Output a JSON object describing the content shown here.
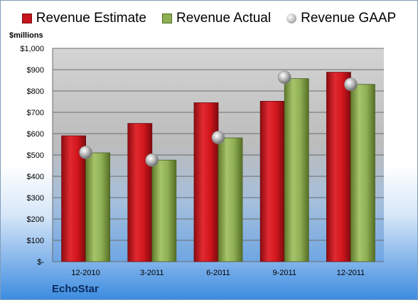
{
  "legend": {
    "estimate": "Revenue Estimate",
    "actual": "Revenue Actual",
    "gaap": "Revenue GAAP"
  },
  "unit_label": "$millions",
  "brand_label": "EchoStar",
  "colors": {
    "estimate": "#c8141c",
    "actual": "#8fb052",
    "gaap": "#b0b0b0"
  },
  "chart_data": {
    "type": "bar",
    "categories": [
      "12-2010",
      "3-2011",
      "6-2011",
      "9-2011",
      "12-2011"
    ],
    "series": [
      {
        "name": "Revenue Estimate",
        "values": [
          590,
          648,
          745,
          752,
          888
        ]
      },
      {
        "name": "Revenue Actual",
        "values": [
          510,
          476,
          580,
          858,
          831
        ]
      },
      {
        "name": "Revenue GAAP",
        "values": [
          512,
          476,
          582,
          864,
          831
        ]
      }
    ],
    "y_ticks": [
      "$-",
      "$100",
      "$200",
      "$300",
      "$400",
      "$500",
      "$600",
      "$700",
      "$800",
      "$900",
      "$1,000"
    ],
    "ylim": [
      0,
      1000
    ],
    "grid": true,
    "legend_position": "top"
  }
}
